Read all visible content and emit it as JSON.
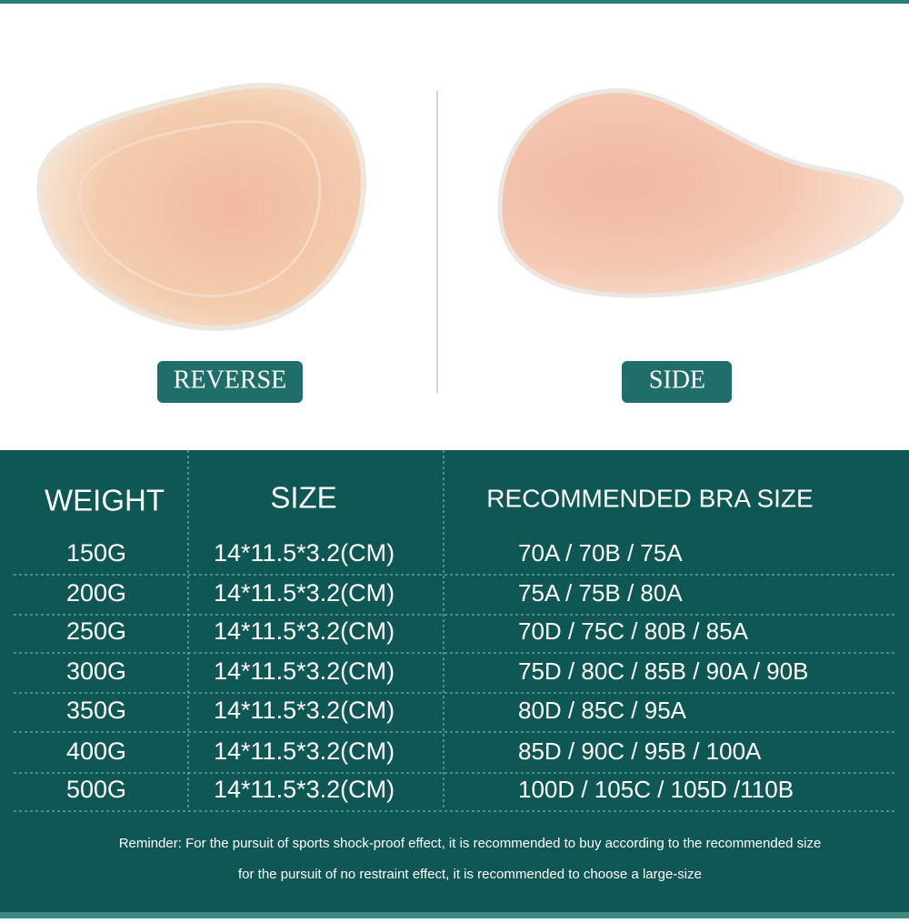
{
  "views": [
    {
      "label": "REVERSE"
    },
    {
      "label": "SIDE"
    }
  ],
  "table": {
    "headers": [
      "WEIGHT",
      "SIZE",
      "RECOMMENDED BRA SIZE"
    ],
    "rows": [
      [
        "150G",
        "14*11.5*3.2(CM)",
        "70A / 70B / 75A"
      ],
      [
        "200G",
        "14*11.5*3.2(CM)",
        "75A / 75B / 80A"
      ],
      [
        "250G",
        "14*11.5*3.2(CM)",
        "70D / 75C / 80B / 85A"
      ],
      [
        "300G",
        "14*11.5*3.2(CM)",
        "75D / 80C / 85B / 90A / 90B"
      ],
      [
        "350G",
        "14*11.5*3.2(CM)",
        "80D / 85C / 95A"
      ],
      [
        "400G",
        "14*11.5*3.2(CM)",
        "85D / 90C / 95B / 100A"
      ],
      [
        "500G",
        "14*11.5*3.2(CM)",
        "100D / 105C / 105D /110B"
      ]
    ]
  },
  "reminder": [
    "Reminder: For the pursuit of sports shock-proof effect, it is recommended to buy according to the recommended size",
    "for the pursuit of no restraint effect, it is recommended to choose a large-size"
  ]
}
